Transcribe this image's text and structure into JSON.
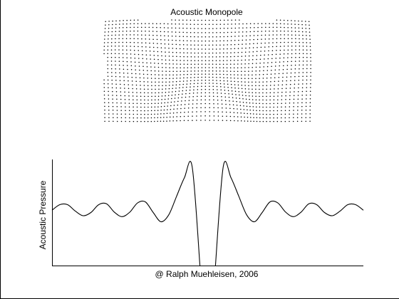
{
  "chart_data": [
    {
      "type": "scatter",
      "title": "Acoustic Monopole",
      "xlabel": "",
      "ylabel": "",
      "grid": false,
      "description_of_marks": "dotted particle displacement field around a point source at bottom center; dots compress into concentric wavefronts",
      "source_position": "bottom-center",
      "visible_wavefront_count": 4
    },
    {
      "type": "line",
      "title": "",
      "xlabel": "@ Ralph Muehleisen, 2006",
      "ylabel": "Acoustic Pressure",
      "grid": false,
      "xlim": [
        -10,
        10
      ],
      "ylim": [
        -1.2,
        1.1
      ],
      "series": [
        {
          "x": [
            -10,
            -9.5,
            -9,
            -8.5,
            -8,
            -7.5,
            -7,
            -6.5,
            -6,
            -5.5,
            -5,
            -4.5,
            -4,
            -3.5,
            -3,
            -2.5,
            -2,
            -1.5,
            -1,
            -0.5,
            0.5,
            1,
            1.5,
            2,
            2.5,
            3,
            3.5,
            4,
            4.5,
            5,
            5.5,
            6,
            6.5,
            7,
            7.5,
            8,
            8.5,
            9,
            9.5,
            10
          ],
          "values": [
            0.0,
            0.12,
            0.12,
            -0.02,
            -0.12,
            -0.05,
            0.12,
            0.14,
            -0.04,
            -0.14,
            -0.04,
            0.16,
            0.18,
            -0.05,
            -0.25,
            -0.1,
            0.3,
            0.7,
            0.95,
            -1.2,
            -1.2,
            0.95,
            0.7,
            0.3,
            -0.1,
            -0.25,
            -0.05,
            0.18,
            0.16,
            -0.04,
            -0.14,
            -0.04,
            0.14,
            0.12,
            -0.05,
            -0.12,
            -0.02,
            0.12,
            0.12,
            0.0
          ]
        }
      ]
    }
  ],
  "footer": {
    "credit": "@ Ralph Muehleisen, 2006"
  }
}
